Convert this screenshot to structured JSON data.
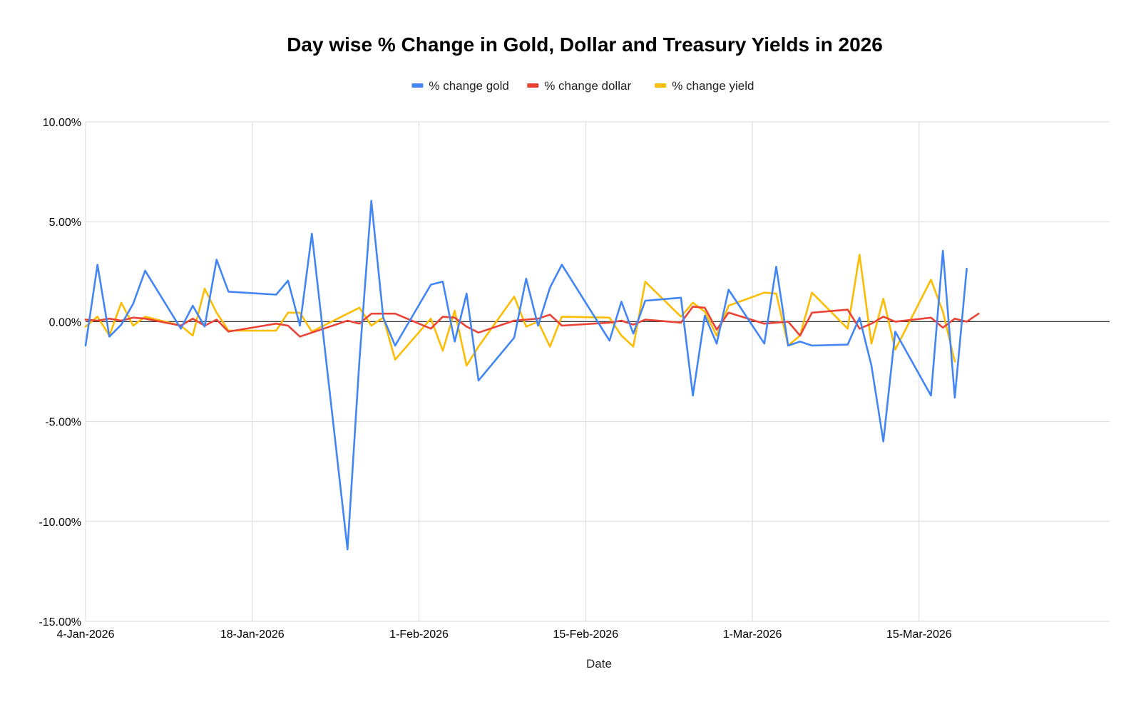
{
  "chart_data": {
    "type": "line",
    "title": "Day wise % Change in Gold, Dollar and Treasury Yields in 2026",
    "xlabel": "Date",
    "ylabel": "",
    "ylim": [
      -15,
      10
    ],
    "y_ticks": [
      10,
      5,
      0,
      -5,
      -10,
      -15
    ],
    "y_tick_labels": [
      "10.00%",
      "5.00%",
      "0.00%",
      "-5.00%",
      "-10.00%",
      "-15.00%"
    ],
    "x_range": [
      "2026-01-04",
      "2026-03-31"
    ],
    "x_ticks": [
      "2026-01-04",
      "2026-01-18",
      "2026-02-01",
      "2026-02-15",
      "2026-03-01",
      "2026-03-15"
    ],
    "x_tick_labels": [
      "4-Jan-2026",
      "18-Jan-2026",
      "1-Feb-2026",
      "15-Feb-2026",
      "1-Mar-2026",
      "15-Mar-2026"
    ],
    "grid": true,
    "legend_position": "top-center",
    "x": [
      "2026-01-02",
      "2026-01-05",
      "2026-01-06",
      "2026-01-07",
      "2026-01-08",
      "2026-01-09",
      "2026-01-12",
      "2026-01-13",
      "2026-01-14",
      "2026-01-15",
      "2026-01-16",
      "2026-01-20",
      "2026-01-21",
      "2026-01-22",
      "2026-01-23",
      "2026-01-26",
      "2026-01-27",
      "2026-01-28",
      "2026-01-29",
      "2026-01-30",
      "2026-02-02",
      "2026-02-03",
      "2026-02-04",
      "2026-02-05",
      "2026-02-06",
      "2026-02-09",
      "2026-02-10",
      "2026-02-11",
      "2026-02-12",
      "2026-02-13",
      "2026-02-17",
      "2026-02-18",
      "2026-02-19",
      "2026-02-20",
      "2026-02-23",
      "2026-02-24",
      "2026-02-25",
      "2026-02-26",
      "2026-02-27",
      "2026-03-02",
      "2026-03-03",
      "2026-03-04",
      "2026-03-05",
      "2026-03-06",
      "2026-03-09",
      "2026-03-10",
      "2026-03-11",
      "2026-03-12",
      "2026-03-13",
      "2026-03-16",
      "2026-03-17",
      "2026-03-18",
      "2026-03-19",
      "2026-03-20",
      "2026-03-23",
      "2026-03-24",
      "2026-03-25",
      "2026-03-26",
      "2026-03-27",
      "2026-03-30",
      "2026-03-31"
    ],
    "series": [
      {
        "name": "% change gold",
        "color": "#4285f4",
        "values": [
          -1.2,
          2.85,
          -0.75,
          -0.15,
          0.9,
          2.55,
          -0.35,
          0.8,
          -0.25,
          3.1,
          1.5,
          1.35,
          2.05,
          -0.2,
          4.4,
          -11.4,
          -1.95,
          6.05,
          0.2,
          -1.2,
          1.85,
          2.0,
          -1.0,
          1.4,
          -2.95,
          -0.8,
          2.15,
          -0.2,
          1.7,
          2.85,
          -0.95,
          1.0,
          -0.6,
          1.05,
          1.2,
          -3.7,
          0.3,
          -1.1,
          1.6,
          -1.1,
          2.75,
          -1.2,
          -1.0,
          -1.2,
          -1.15,
          0.2,
          -2.2,
          -6.0,
          -0.5,
          -3.7,
          3.55,
          -3.8,
          2.65,
          null,
          null,
          null,
          null,
          null,
          null,
          null,
          null
        ]
      },
      {
        "name": "% change dollar",
        "color": "#ea4335",
        "values": [
          0.1,
          0.05,
          0.15,
          0.05,
          0.2,
          0.15,
          -0.2,
          0.15,
          -0.2,
          0.1,
          -0.5,
          -0.1,
          -0.2,
          -0.75,
          -0.55,
          0.05,
          -0.1,
          0.4,
          0.4,
          0.4,
          -0.35,
          0.25,
          0.2,
          -0.25,
          -0.55,
          0.05,
          0.1,
          0.15,
          0.35,
          -0.2,
          -0.05,
          0.05,
          -0.15,
          0.1,
          -0.05,
          0.75,
          0.7,
          -0.4,
          0.45,
          -0.1,
          -0.05,
          0.0,
          -0.7,
          0.45,
          0.6,
          -0.35,
          -0.1,
          0.25,
          0.0,
          0.2,
          -0.3,
          0.15,
          0.0,
          0.4,
          null,
          null,
          null,
          null,
          null,
          null,
          null
        ]
      },
      {
        "name": "% change yield",
        "color": "#fbbc04",
        "values": [
          -0.25,
          0.25,
          -0.7,
          0.95,
          -0.2,
          0.25,
          -0.2,
          -0.7,
          1.65,
          0.45,
          -0.45,
          -0.45,
          0.45,
          0.45,
          -0.5,
          0.4,
          0.7,
          -0.2,
          0.2,
          -1.9,
          0.15,
          -1.45,
          0.55,
          -2.2,
          -1.25,
          1.25,
          -0.25,
          0.0,
          -1.25,
          0.25,
          0.2,
          -0.7,
          -1.25,
          2.0,
          0.25,
          0.95,
          0.5,
          -0.7,
          0.8,
          1.45,
          1.4,
          -1.2,
          -0.7,
          1.45,
          -0.35,
          3.35,
          -1.1,
          1.15,
          -1.4,
          2.1,
          0.5,
          -2.0,
          null,
          null,
          null,
          null,
          null,
          null,
          null,
          null,
          null
        ]
      }
    ]
  }
}
